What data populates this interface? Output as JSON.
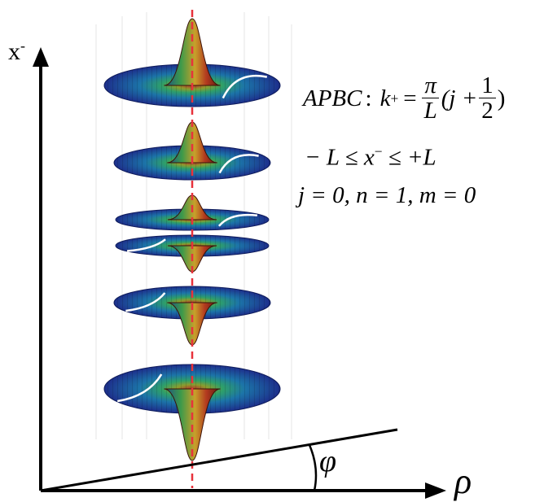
{
  "axes": {
    "vertical_label_base": "x",
    "vertical_label_sup": "-",
    "horizontal_label": "ρ",
    "angle_label": "φ"
  },
  "equations": {
    "apbc": {
      "label": "APBC",
      "colon": ":",
      "k": "k",
      "k_sup": "+",
      "equals": "=",
      "pi": "π",
      "L": "L",
      "paren_open": "(j +",
      "half_num": "1",
      "half_den": "2",
      "paren_close": ")"
    },
    "range": {
      "left": "− L ≤",
      "x": "x",
      "x_sup": "−",
      "right": "≤ +L"
    },
    "quantum_numbers": "j = 0, n = 1, m = 0"
  },
  "colors": {
    "axis": "#000000",
    "centerline": "#e8323c",
    "surface_outer": "#1f3b9e",
    "surface_mid": "#1f8fb0",
    "surface_inner": "#58b848",
    "surface_peak": "#c0391c",
    "highlight_curve": "#ffffff"
  },
  "wavefunction_slices": [
    {
      "lobe": "up",
      "scale": 1.0
    },
    {
      "lobe": "up",
      "scale": 0.85
    },
    {
      "lobe": "up",
      "scale": 0.7
    },
    {
      "lobe": "down",
      "scale": 0.7
    },
    {
      "lobe": "down",
      "scale": 0.85
    },
    {
      "lobe": "down",
      "scale": 1.0
    }
  ]
}
